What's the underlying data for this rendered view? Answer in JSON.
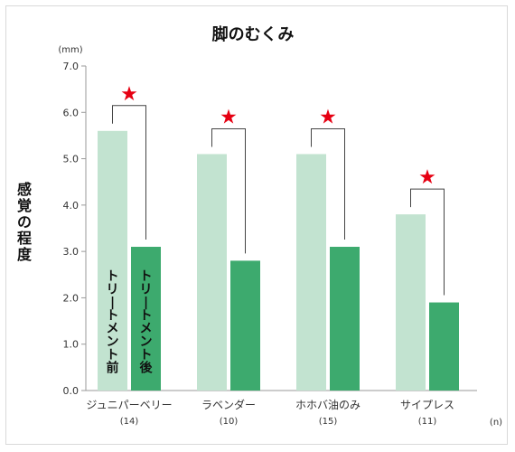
{
  "chart_data": {
    "type": "bar",
    "title": "脚のむくみ",
    "ylabel": "感覚の程度",
    "yunit": "(mm)",
    "xunit": "(n)",
    "ylim": [
      0,
      7
    ],
    "yticks": [
      "0.0",
      "1.0",
      "2.0",
      "3.0",
      "4.0",
      "5.0",
      "6.0",
      "7.0"
    ],
    "grid": false,
    "categories": [
      "ジュニパーベリー",
      "ラベンダー",
      "ホホバ油のみ",
      "サイプレス"
    ],
    "counts": [
      "(14)",
      "(10)",
      "(15)",
      "(11)"
    ],
    "series": [
      {
        "name": "トリートメント前",
        "values": [
          5.6,
          5.1,
          5.1,
          3.8
        ]
      },
      {
        "name": "トリートメント後",
        "values": [
          3.1,
          2.8,
          3.1,
          1.9
        ]
      }
    ],
    "significance_marker": "★",
    "colors": {
      "before": "#c2e3d0",
      "after": "#3daa6e",
      "star": "#e60012",
      "bracket": "#444444",
      "axis": "#999999"
    }
  }
}
